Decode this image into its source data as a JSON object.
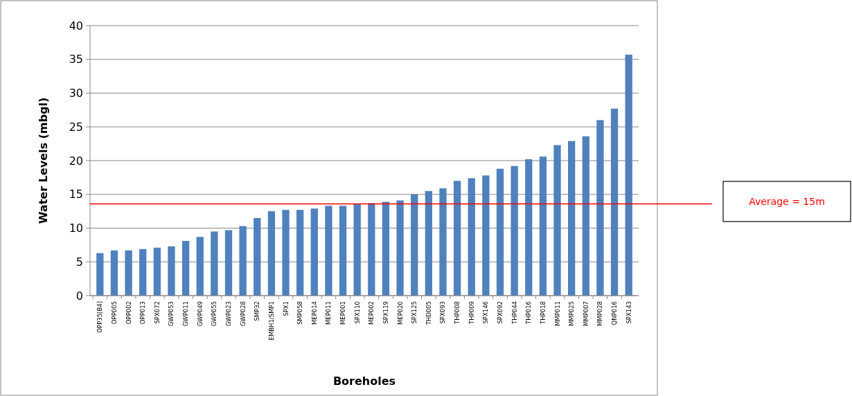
{
  "chart_data": {
    "type": "bar",
    "xlabel": "Boreholes",
    "ylabel": "Water Levels (mbgl)",
    "categories": [
      "OPP35[B4]",
      "OPP005",
      "OPP002",
      "OPP013",
      "SPX072",
      "GWP053",
      "GWP011",
      "GWP049",
      "GWP055",
      "GWP023",
      "GWP028",
      "SMP32",
      "EMBH1/SMP1",
      "SPX1",
      "SMP058",
      "MEP014",
      "MEP011",
      "MEP001",
      "SPX110",
      "MEP002",
      "SPX119",
      "MEP020",
      "SPX125",
      "THD005",
      "SPX093",
      "THP008",
      "THP009",
      "SPX146",
      "SPX092",
      "THP044",
      "THP016",
      "THP018",
      "MMP011",
      "MMP025",
      "MMP007",
      "MMP028",
      "QNP016",
      "SPX143"
    ],
    "values": [
      6.3,
      6.7,
      6.7,
      6.9,
      7.1,
      7.3,
      8.1,
      8.7,
      9.5,
      9.7,
      10.3,
      11.5,
      12.5,
      12.7,
      12.7,
      12.9,
      13.3,
      13.3,
      13.6,
      13.7,
      13.9,
      14.1,
      15.0,
      15.5,
      15.9,
      17.0,
      17.4,
      17.8,
      18.8,
      19.2,
      20.2,
      20.6,
      22.3,
      22.9,
      23.6,
      26.0,
      27.7,
      35.7
    ],
    "color": "#4f81bd",
    "ylim": [
      0,
      40
    ],
    "yticks": [
      0,
      5,
      10,
      15,
      20,
      25,
      30,
      35,
      40
    ],
    "grid": "y",
    "ref_lines": [
      {
        "axis": "y",
        "value": 13.6,
        "color": "#ff0000"
      }
    ],
    "annotations": [
      "Average = 15m"
    ]
  }
}
